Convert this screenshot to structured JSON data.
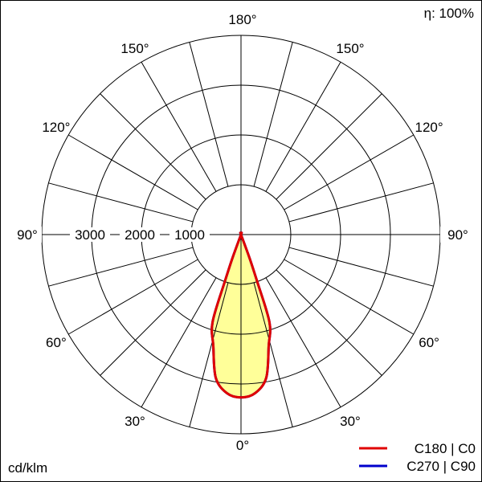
{
  "chart_data": {
    "type": "polar",
    "efficiency_label": "η: 100%",
    "unit_label": "cd/klm",
    "radial_ticks": [
      1000,
      2000,
      3000,
      4000
    ],
    "radial_tick_labels": [
      "1000",
      "2000",
      "3000"
    ],
    "rlim": [
      0,
      4000
    ],
    "angle_labels": [
      {
        "angle": 0,
        "text": "0°"
      },
      {
        "angle": 30,
        "text": "30°"
      },
      {
        "angle": 60,
        "text": "60°"
      },
      {
        "angle": 90,
        "text": "90°"
      },
      {
        "angle": 120,
        "text": "120°"
      },
      {
        "angle": 150,
        "text": "150°"
      },
      {
        "angle": 180,
        "text": "180°"
      }
    ],
    "angle_grid_step": 15,
    "fill_color": "#ffff99",
    "series": [
      {
        "name": "C270 | C90",
        "color": "#0000cc",
        "angles": [
          0,
          5,
          10,
          14,
          18,
          19,
          20,
          21
        ],
        "values": [
          3270,
          3200,
          2920,
          2300,
          1850,
          1000,
          500,
          0
        ]
      },
      {
        "name": "C180 | C0",
        "color": "#e00000",
        "angles": [
          0,
          5,
          10,
          14,
          18,
          19,
          20,
          21
        ],
        "values": [
          3270,
          3200,
          2920,
          2300,
          1850,
          1000,
          500,
          0
        ]
      }
    ],
    "legend_placement": "bottom-right"
  }
}
